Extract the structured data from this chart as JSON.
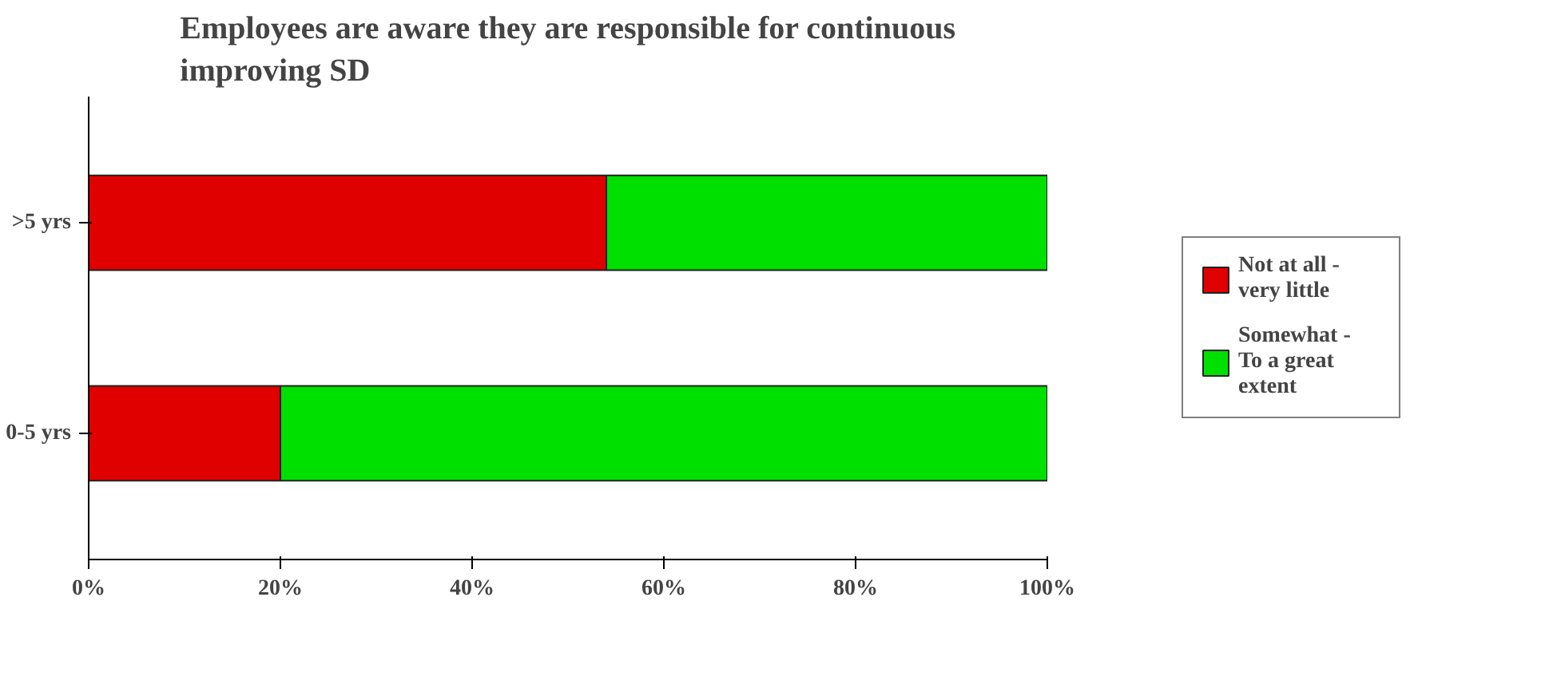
{
  "chart_data": {
    "type": "bar",
    "orientation": "horizontal",
    "stacked": true,
    "title": "Employees are aware they are responsible for continuous improving SD",
    "categories": [
      ">5 yrs",
      "0-5 yrs"
    ],
    "series": [
      {
        "name": "Not at all - very little",
        "color": "#e00000",
        "values": [
          54,
          20
        ]
      },
      {
        "name": "Somewhat - To a great extent",
        "color": "#00e000",
        "values": [
          46,
          80
        ]
      }
    ],
    "xlim": [
      0,
      100
    ],
    "xticks": [
      {
        "value": 0,
        "label": "0%"
      },
      {
        "value": 20,
        "label": "20%"
      },
      {
        "value": 40,
        "label": "40%"
      },
      {
        "value": 60,
        "label": "60%"
      },
      {
        "value": 80,
        "label": "80%"
      },
      {
        "value": 100,
        "label": "100%"
      }
    ],
    "legend": "right",
    "grid": false
  }
}
